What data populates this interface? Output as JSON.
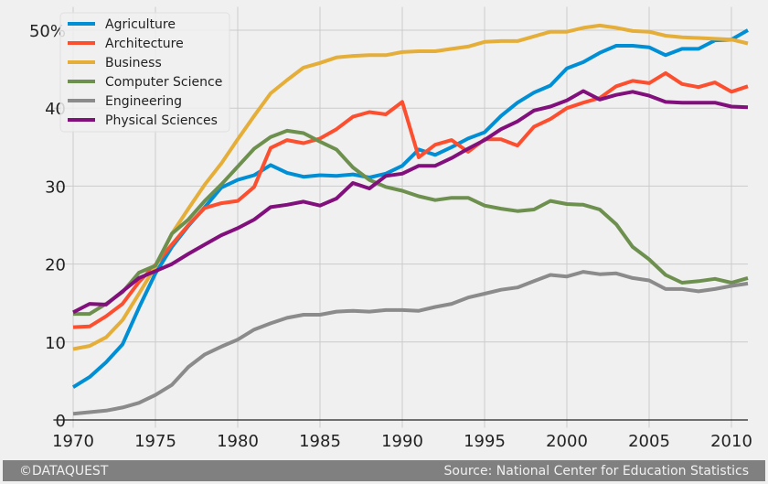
{
  "chart_data": {
    "type": "line",
    "title": "",
    "xlabel": "",
    "ylabel": "",
    "xlim": [
      1968.8,
      2011
    ],
    "ylim": [
      -1,
      53
    ],
    "grid": true,
    "legend_position": "top-left",
    "x_ticks": [
      1970,
      1975,
      1980,
      1985,
      1990,
      1995,
      2000,
      2005,
      2010
    ],
    "x_tick_labels": [
      "1970",
      "1975",
      "1980",
      "1985",
      "1990",
      "1995",
      "2000",
      "2005",
      "2010"
    ],
    "y_ticks": [
      0,
      10,
      20,
      30,
      40,
      50
    ],
    "y_tick_labels": [
      "0",
      "10",
      "20",
      "30",
      "40",
      "50%"
    ],
    "x": [
      1970,
      1971,
      1972,
      1973,
      1974,
      1975,
      1976,
      1977,
      1978,
      1979,
      1980,
      1981,
      1982,
      1983,
      1984,
      1985,
      1986,
      1987,
      1988,
      1989,
      1990,
      1991,
      1992,
      1993,
      1994,
      1995,
      1996,
      1997,
      1998,
      1999,
      2000,
      2001,
      2002,
      2003,
      2004,
      2005,
      2006,
      2007,
      2008,
      2009,
      2010,
      2011
    ],
    "series": [
      {
        "name": "Agriculture",
        "color": "#008fd5",
        "values": [
          4.2,
          5.5,
          7.4,
          9.7,
          14.4,
          18.8,
          22.2,
          24.9,
          27.3,
          29.8,
          30.8,
          31.4,
          32.7,
          31.7,
          31.2,
          31.4,
          31.3,
          31.5,
          31.1,
          31.6,
          32.6,
          34.7,
          34.0,
          35.0,
          36.1,
          36.9,
          39.0,
          40.7,
          42.0,
          42.9,
          45.1,
          45.9,
          47.1,
          48.0,
          48.0,
          47.8,
          46.8,
          47.6,
          47.6,
          48.7,
          48.8,
          50.0
        ]
      },
      {
        "name": "Architecture",
        "color": "#fc4f30",
        "values": [
          11.9,
          12.0,
          13.3,
          14.9,
          17.7,
          19.9,
          22.5,
          25.0,
          27.2,
          27.8,
          28.1,
          29.9,
          34.9,
          35.9,
          35.5,
          36.1,
          37.3,
          38.9,
          39.5,
          39.2,
          40.8,
          33.7,
          35.3,
          35.9,
          34.4,
          36.0,
          36.0,
          35.2,
          37.6,
          38.6,
          40.0,
          40.7,
          41.3,
          42.8,
          43.5,
          43.2,
          44.5,
          43.1,
          42.7,
          43.3,
          42.1,
          42.8
        ]
      },
      {
        "name": "Business",
        "color": "#e5ae38",
        "values": [
          9.1,
          9.5,
          10.6,
          12.8,
          16.2,
          19.7,
          23.9,
          27.1,
          30.2,
          32.9,
          36.0,
          39.0,
          41.9,
          43.6,
          45.2,
          45.8,
          46.5,
          46.7,
          46.8,
          46.8,
          47.2,
          47.3,
          47.3,
          47.6,
          47.9,
          48.5,
          48.6,
          48.6,
          49.2,
          49.8,
          49.8,
          50.3,
          50.6,
          50.3,
          49.9,
          49.8,
          49.3,
          49.1,
          49.0,
          48.9,
          48.8,
          48.3
        ]
      },
      {
        "name": "Computer Science",
        "color": "#6d904f",
        "values": [
          13.6,
          13.6,
          14.9,
          16.4,
          18.9,
          19.8,
          23.9,
          25.7,
          28.1,
          30.2,
          32.5,
          34.8,
          36.3,
          37.1,
          36.8,
          35.7,
          34.7,
          32.4,
          30.8,
          29.9,
          29.4,
          28.7,
          28.2,
          28.5,
          28.5,
          27.5,
          27.1,
          26.8,
          27.0,
          28.1,
          27.7,
          27.6,
          27.0,
          25.1,
          22.2,
          20.6,
          18.6,
          17.6,
          17.8,
          18.1,
          17.6,
          18.2
        ]
      },
      {
        "name": "Engineering",
        "color": "#8b8b8b",
        "values": [
          0.8,
          1.0,
          1.2,
          1.6,
          2.2,
          3.2,
          4.5,
          6.8,
          8.4,
          9.4,
          10.3,
          11.6,
          12.4,
          13.1,
          13.5,
          13.5,
          13.9,
          14.0,
          13.9,
          14.1,
          14.1,
          14.0,
          14.5,
          14.9,
          15.7,
          16.2,
          16.7,
          17.0,
          17.8,
          18.6,
          18.4,
          19.0,
          18.7,
          18.8,
          18.2,
          17.9,
          16.8,
          16.8,
          16.5,
          16.8,
          17.2,
          17.5
        ]
      },
      {
        "name": "Physical Sciences",
        "color": "#810f7c",
        "values": [
          13.8,
          14.9,
          14.8,
          16.5,
          18.2,
          19.1,
          20.0,
          21.3,
          22.5,
          23.7,
          24.6,
          25.7,
          27.3,
          27.6,
          28.0,
          27.5,
          28.4,
          30.4,
          29.7,
          31.3,
          31.6,
          32.6,
          32.6,
          33.6,
          34.8,
          35.9,
          37.3,
          38.3,
          39.7,
          40.2,
          41.0,
          42.2,
          41.1,
          41.7,
          42.1,
          41.6,
          40.8,
          40.7,
          40.7,
          40.7,
          40.2,
          40.1
        ]
      }
    ]
  },
  "footer": {
    "left": "©DATAQUEST",
    "right": "Source: National Center for Education Statistics"
  }
}
